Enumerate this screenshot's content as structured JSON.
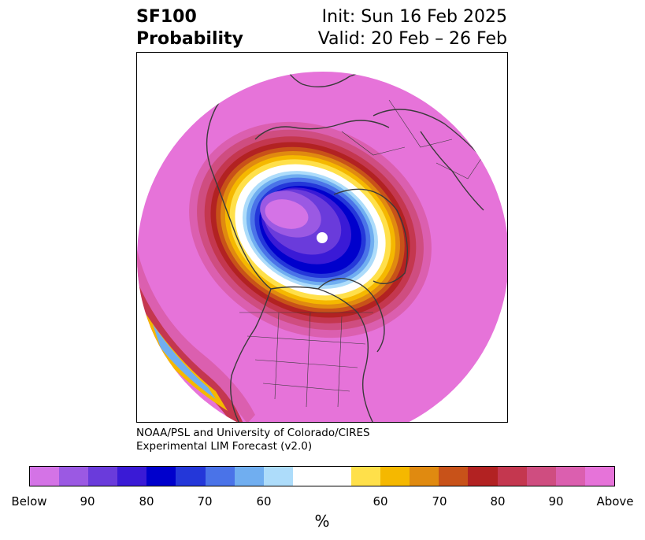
{
  "header": {
    "field": "SF100",
    "kind": "Probability",
    "init": "Init: Sun 16 Feb 2025",
    "valid": "Valid: 20 Feb – 26 Feb"
  },
  "credit": {
    "line1": "NOAA/PSL and University of Colorado/CIRES",
    "line2": "Experimental LIM Forecast (v2.0)"
  },
  "colorbar": {
    "unit": "%",
    "ticks": [
      "Below",
      "90",
      "80",
      "70",
      "60",
      "60",
      "70",
      "80",
      "90",
      "Above"
    ],
    "colors": [
      "#d473e6",
      "#9b59e3",
      "#6a3bdb",
      "#3a1ad6",
      "#0000cc",
      "#2437d9",
      "#4a73e8",
      "#70aef0",
      "#addcfa",
      "#ffffff",
      "#ffe04a",
      "#f5b800",
      "#e08a10",
      "#c85219",
      "#b22222",
      "#c4374f",
      "#cf4d80",
      "#db5faf",
      "#e673d9"
    ]
  },
  "map": {
    "colors": {
      "above": "#e673d9",
      "below_core": "#d473e6",
      "coast": "#3a3a3a"
    }
  }
}
